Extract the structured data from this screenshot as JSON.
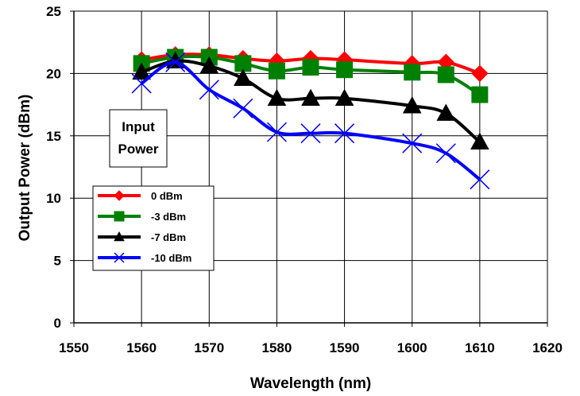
{
  "chart_data": {
    "type": "line",
    "xlabel": "Wavelength (nm)",
    "ylabel": "Output Power (dBm)",
    "xlim": [
      1550,
      1620
    ],
    "ylim": [
      0,
      25
    ],
    "xticks": [
      "1550",
      "1560",
      "1570",
      "1580",
      "1590",
      "1600",
      "1610",
      "1620"
    ],
    "yticks": [
      "0",
      "5",
      "10",
      "15",
      "20",
      "25"
    ],
    "grid": true,
    "legend_placement": "left",
    "annotation": [
      "Input",
      "Power"
    ],
    "series": [
      {
        "name": "0 dBm",
        "color": "#ff0000",
        "marker": "diamond",
        "x": [
          1560,
          1565,
          1570,
          1575,
          1580,
          1585,
          1590,
          1600,
          1605,
          1610
        ],
        "y": [
          21.1,
          21.5,
          21.5,
          21.2,
          21.0,
          21.2,
          21.1,
          20.8,
          20.9,
          20.0
        ]
      },
      {
        "name": "-3 dBm",
        "color": "#008000",
        "marker": "square",
        "x": [
          1560,
          1565,
          1570,
          1575,
          1580,
          1585,
          1590,
          1600,
          1605,
          1610
        ],
        "y": [
          20.8,
          21.3,
          21.3,
          20.8,
          20.2,
          20.5,
          20.3,
          20.1,
          19.9,
          18.3
        ]
      },
      {
        "name": "-7 dBm",
        "color": "#000000",
        "marker": "triangle",
        "x": [
          1560,
          1565,
          1570,
          1575,
          1580,
          1585,
          1590,
          1600,
          1605,
          1610
        ],
        "y": [
          20.1,
          21.0,
          20.6,
          19.6,
          18.0,
          18.0,
          18.0,
          17.4,
          16.8,
          14.5
        ]
      },
      {
        "name": "-10 dBm",
        "color": "#0000ff",
        "marker": "x",
        "x": [
          1560,
          1565,
          1570,
          1575,
          1580,
          1585,
          1590,
          1600,
          1605,
          1610
        ],
        "y": [
          19.2,
          20.9,
          18.7,
          17.2,
          15.3,
          15.2,
          15.2,
          14.4,
          13.6,
          11.5
        ]
      }
    ]
  }
}
